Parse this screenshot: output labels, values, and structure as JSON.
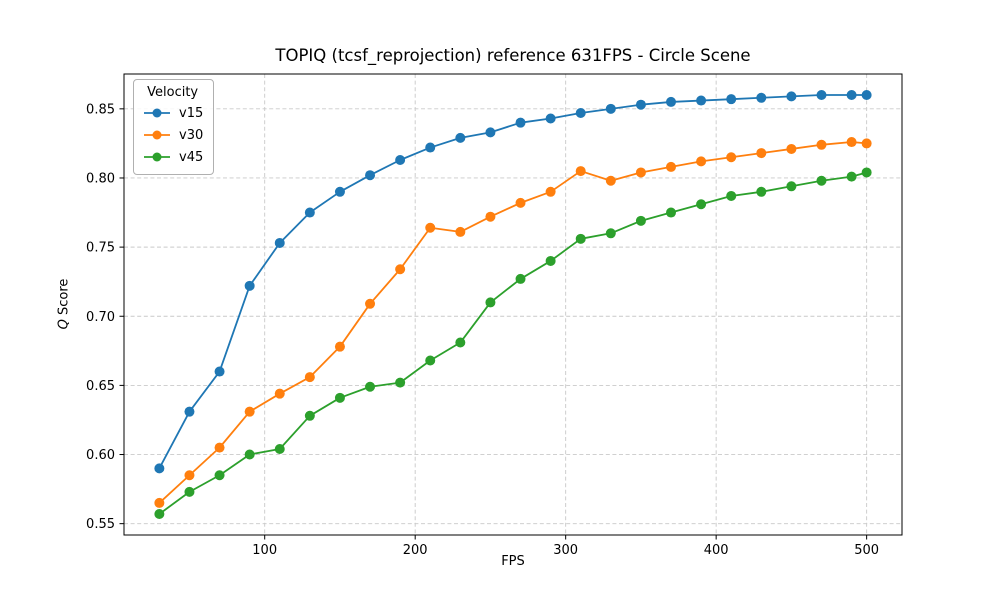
{
  "figure": {
    "background": "#ffffff"
  },
  "chart_data": {
    "type": "line",
    "title": "TOPIQ (tcsf_reprojection) reference 631FPS - Circle Scene",
    "xlabel": "FPS",
    "ylabel": "Q Score",
    "legend": {
      "title": "Velocity",
      "position": "upper left"
    },
    "grid": true,
    "xlim": [
      6.5,
      523.5
    ],
    "ylim": [
      0.5418,
      0.8752
    ],
    "x_ticks": [
      100,
      200,
      300,
      400,
      500
    ],
    "y_ticks": [
      0.55,
      0.6,
      0.65,
      0.7,
      0.75,
      0.8,
      0.85
    ],
    "x": [
      30,
      50,
      70,
      90,
      110,
      130,
      150,
      170,
      190,
      210,
      230,
      250,
      270,
      290,
      310,
      330,
      350,
      370,
      390,
      410,
      430,
      450,
      470,
      490,
      500
    ],
    "series": [
      {
        "name": "v15",
        "color": "#1f77b4",
        "values": [
          0.59,
          0.631,
          0.66,
          0.722,
          0.753,
          0.775,
          0.79,
          0.802,
          0.813,
          0.822,
          0.829,
          0.833,
          0.84,
          0.843,
          0.847,
          0.85,
          0.853,
          0.855,
          0.856,
          0.857,
          0.858,
          0.859,
          0.86,
          0.86,
          0.86
        ]
      },
      {
        "name": "v30",
        "color": "#ff7f0e",
        "values": [
          0.565,
          0.585,
          0.605,
          0.631,
          0.644,
          0.656,
          0.678,
          0.709,
          0.734,
          0.764,
          0.761,
          0.772,
          0.782,
          0.79,
          0.805,
          0.798,
          0.804,
          0.808,
          0.812,
          0.815,
          0.818,
          0.821,
          0.824,
          0.826,
          0.825
        ]
      },
      {
        "name": "v45",
        "color": "#2ca02c",
        "values": [
          0.557,
          0.573,
          0.585,
          0.6,
          0.604,
          0.628,
          0.641,
          0.649,
          0.652,
          0.668,
          0.681,
          0.71,
          0.727,
          0.74,
          0.756,
          0.76,
          0.769,
          0.775,
          0.781,
          0.787,
          0.79,
          0.794,
          0.798,
          0.801,
          0.804
        ]
      }
    ],
    "style": {
      "grid_color": "#c9c9c9",
      "spine_color": "#000000",
      "marker_radius": 5,
      "line_width": 1.8
    }
  }
}
